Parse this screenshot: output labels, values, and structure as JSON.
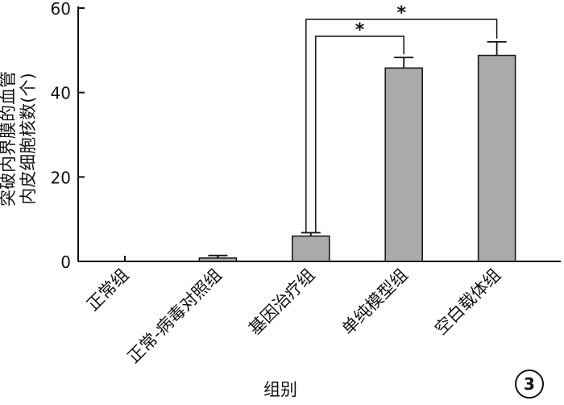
{
  "chart_data": {
    "type": "bar",
    "categories": [
      "正常组",
      "正常-病毒对照组",
      "基因治疗组",
      "单纯模型组",
      "空白载体组"
    ],
    "values": [
      0,
      0.8,
      6.0,
      45.8,
      48.8
    ],
    "errors": [
      0,
      0.6,
      0.8,
      2.5,
      3.2
    ],
    "xlabel": "组别",
    "ylabel_lines": [
      "突破内界膜的血管",
      "内皮细胞核数(个)"
    ],
    "ylim": [
      0,
      60
    ],
    "yticks": [
      0,
      20,
      40,
      60
    ],
    "bar_color": "#aaaaaa",
    "significance": [
      {
        "from": 2,
        "to": 3,
        "label": "*"
      },
      {
        "from": 2,
        "to": 4,
        "label": "*"
      }
    ],
    "panel_label": "3"
  }
}
